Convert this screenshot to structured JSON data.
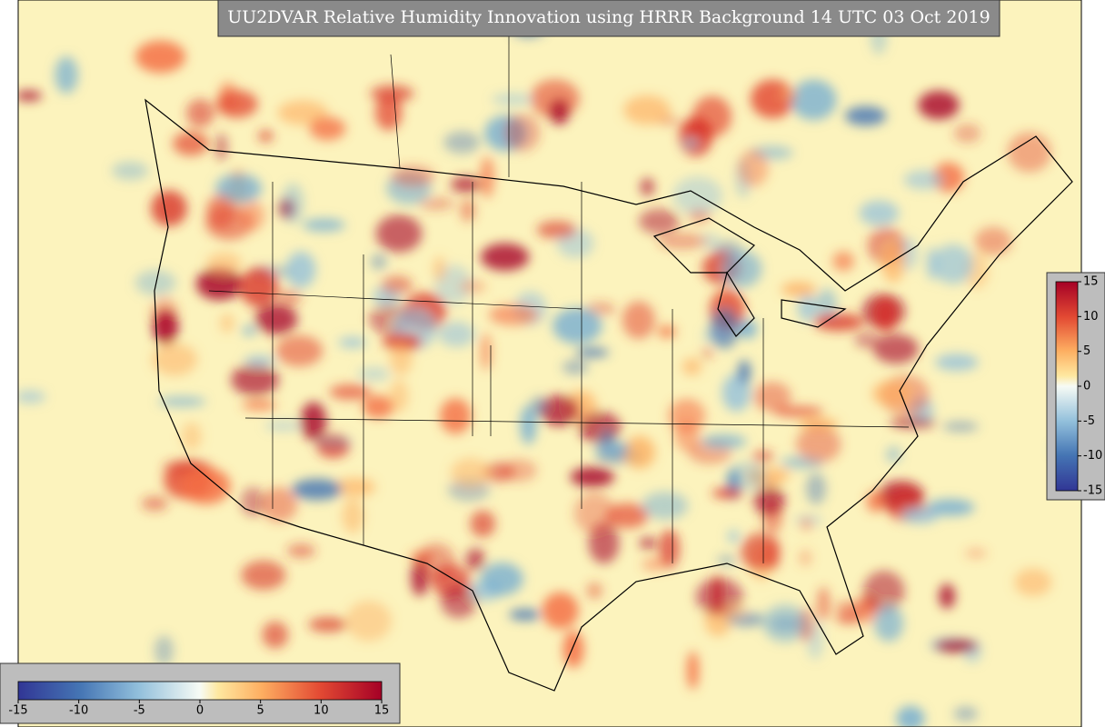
{
  "title": "UU2DVAR Relative Humidity Innovation using HRRR Background 14 UTC 03 Oct 2019",
  "horizontal_colorbar": {
    "range": [
      -15,
      15
    ],
    "ticks": [
      -15,
      -10,
      -5,
      0,
      5,
      10,
      15
    ]
  },
  "vertical_colorbar": {
    "range": [
      -15,
      15
    ],
    "ticks": [
      -15,
      -10,
      -5,
      0,
      5,
      10,
      15
    ]
  }
}
